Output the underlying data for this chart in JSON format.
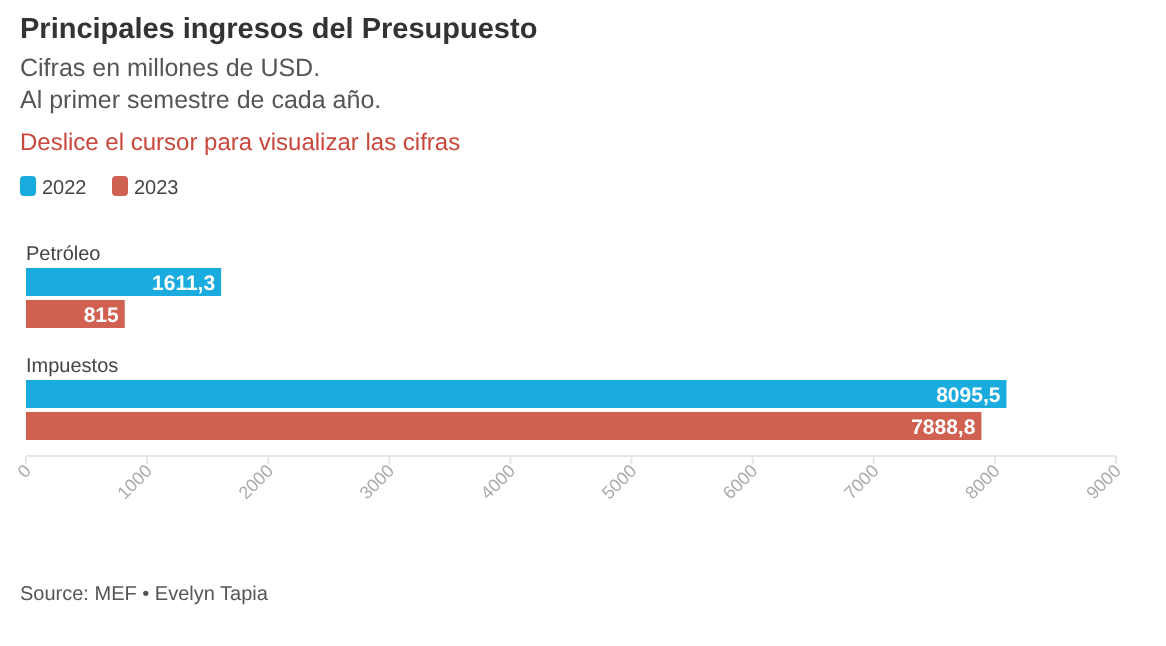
{
  "chart_data": {
    "type": "bar",
    "orientation": "horizontal",
    "title": "Principales ingresos del Presupuesto",
    "subtitle": "Cifras en millones de USD.\nAl primer semestre de cada año.",
    "annotations": [
      "Deslice el cursor para visualizar las cifras",
      "Source: MEF • Evelyn Tapia"
    ],
    "categories": [
      "Petróleo",
      "Impuestos"
    ],
    "series": [
      {
        "name": "2022",
        "color": "#1aabdf",
        "values": [
          1611.3,
          8095.5
        ],
        "value_labels": [
          "1611,3",
          "8095,5"
        ]
      },
      {
        "name": "2023",
        "color": "#d06050",
        "values": [
          815,
          7888.8
        ],
        "value_labels": [
          "815",
          "7888,8"
        ]
      }
    ],
    "xlim": [
      0,
      9000
    ],
    "xticks": [
      0,
      1000,
      2000,
      3000,
      4000,
      5000,
      6000,
      7000,
      8000,
      9000
    ],
    "grid": false,
    "legend": "top left"
  }
}
